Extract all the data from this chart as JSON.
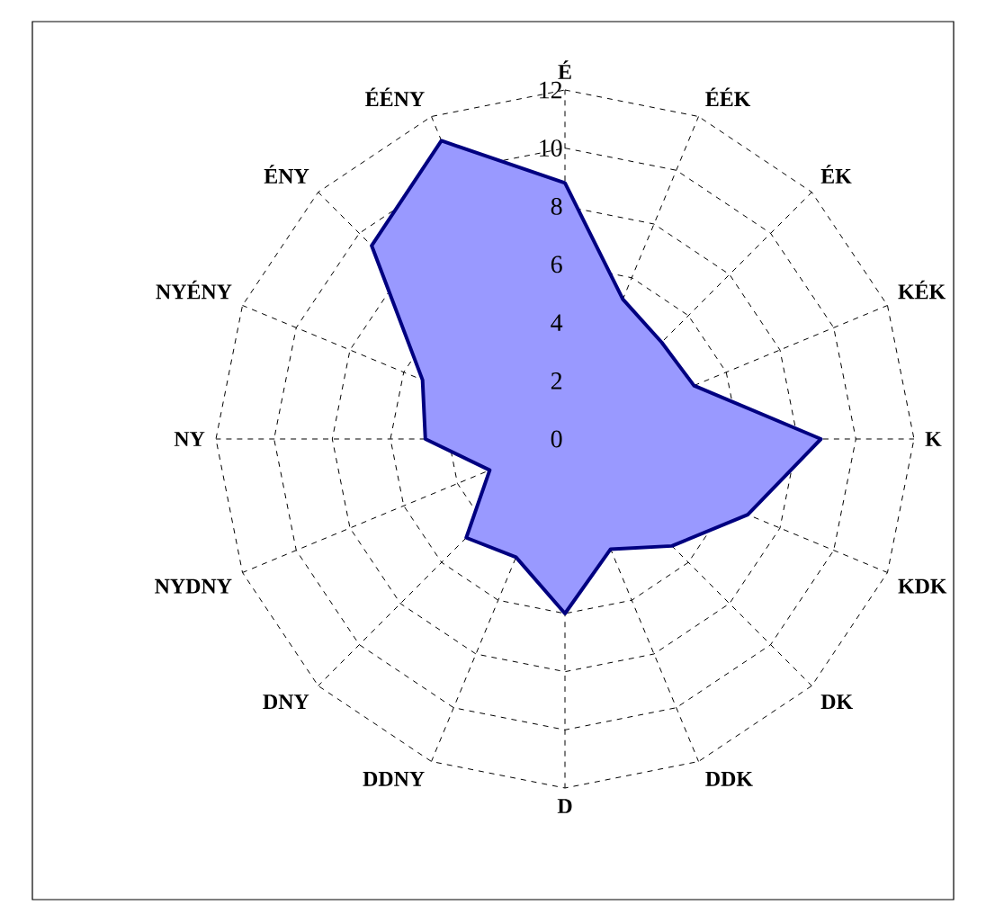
{
  "chart_data": {
    "type": "radar",
    "categories": [
      "É",
      "ÉÉK",
      "ÉK",
      "KÉK",
      "K",
      "KDK",
      "DK",
      "DDK",
      "D",
      "DDNY",
      "DNY",
      "NYDNY",
      "NY",
      "NYÉNY",
      "ÉNY",
      "ÉÉNY"
    ],
    "series": [
      {
        "color": "#9999ff",
        "values": [
          8.8,
          5.2,
          4.7,
          4.8,
          8.8,
          6.8,
          5.2,
          4.1,
          6.0,
          4.4,
          4.8,
          2.8,
          4.8,
          5.3,
          9.4,
          11.1
        ]
      }
    ],
    "ylim": [
      0,
      12
    ],
    "yticks": [
      0,
      2,
      4,
      6,
      8,
      10,
      12
    ],
    "grid": true
  }
}
